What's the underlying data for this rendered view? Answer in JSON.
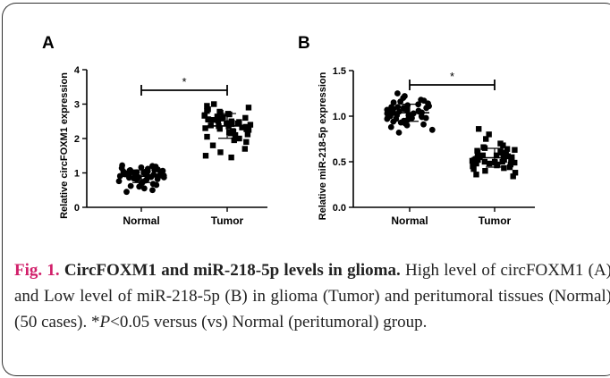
{
  "figure": {
    "panels": [
      {
        "letter": "A",
        "ylabel": "Relative circFOXM1 expression",
        "yticks": [
          "0",
          "1",
          "2",
          "3",
          "4"
        ],
        "categories": [
          "Normal",
          "Tumor"
        ],
        "significance": "*"
      },
      {
        "letter": "B",
        "ylabel": "Relative miR-218-5p expression",
        "yticks": [
          "0.0",
          "0.5",
          "1.0",
          "1.5"
        ],
        "categories": [
          "Normal",
          "Tumor"
        ],
        "significance": "*"
      }
    ]
  },
  "chart_data": [
    {
      "type": "scatter",
      "ylabel": "Relative circFOXM1 expression",
      "categories": [
        "Normal",
        "Tumor"
      ],
      "ylim": [
        0,
        4
      ],
      "series": [
        {
          "name": "Normal",
          "values": [
            0.45,
            0.5,
            0.55,
            0.6,
            0.62,
            0.65,
            0.68,
            0.7,
            0.72,
            0.74,
            0.76,
            0.78,
            0.8,
            0.81,
            0.82,
            0.84,
            0.85,
            0.86,
            0.87,
            0.88,
            0.89,
            0.9,
            0.91,
            0.92,
            0.93,
            0.94,
            0.95,
            0.96,
            0.97,
            0.98,
            0.99,
            1.0,
            1.01,
            1.02,
            1.03,
            1.04,
            1.05,
            1.06,
            1.07,
            1.08,
            1.09,
            1.1,
            1.12,
            1.14,
            1.16,
            1.18,
            1.2,
            1.22,
            0.88,
            0.92
          ]
        },
        {
          "name": "Tumor",
          "values": [
            1.45,
            1.5,
            1.6,
            1.7,
            1.8,
            1.9,
            1.95,
            2.0,
            2.05,
            2.1,
            2.12,
            2.15,
            2.18,
            2.2,
            2.22,
            2.25,
            2.27,
            2.3,
            2.32,
            2.34,
            2.36,
            2.38,
            2.4,
            2.42,
            2.44,
            2.46,
            2.48,
            2.5,
            2.52,
            2.54,
            2.56,
            2.58,
            2.6,
            2.62,
            2.64,
            2.66,
            2.68,
            2.7,
            2.72,
            2.75,
            2.78,
            2.8,
            2.85,
            2.9,
            2.95,
            3.0,
            2.35,
            2.45,
            2.28,
            2.55
          ]
        }
      ]
    },
    {
      "type": "scatter",
      "ylabel": "Relative miR-218-5p expression",
      "categories": [
        "Normal",
        "Tumor"
      ],
      "ylim": [
        0,
        1.5
      ],
      "series": [
        {
          "name": "Normal",
          "values": [
            0.82,
            0.85,
            0.88,
            0.9,
            0.91,
            0.92,
            0.93,
            0.94,
            0.95,
            0.96,
            0.97,
            0.97,
            0.98,
            0.98,
            0.99,
            0.99,
            1.0,
            1.0,
            1.01,
            1.01,
            1.02,
            1.02,
            1.03,
            1.03,
            1.04,
            1.04,
            1.05,
            1.05,
            1.06,
            1.06,
            1.07,
            1.07,
            1.08,
            1.08,
            1.09,
            1.09,
            1.1,
            1.1,
            1.11,
            1.12,
            1.13,
            1.14,
            1.15,
            1.16,
            1.17,
            1.18,
            1.2,
            1.22,
            1.25,
            1.0
          ]
        },
        {
          "name": "Tumor",
          "values": [
            0.34,
            0.36,
            0.38,
            0.4,
            0.42,
            0.43,
            0.44,
            0.45,
            0.46,
            0.47,
            0.47,
            0.48,
            0.48,
            0.49,
            0.49,
            0.5,
            0.5,
            0.5,
            0.51,
            0.51,
            0.52,
            0.52,
            0.52,
            0.53,
            0.53,
            0.54,
            0.54,
            0.55,
            0.55,
            0.56,
            0.56,
            0.57,
            0.57,
            0.58,
            0.58,
            0.59,
            0.6,
            0.6,
            0.61,
            0.62,
            0.63,
            0.64,
            0.65,
            0.66,
            0.68,
            0.7,
            0.75,
            0.8,
            0.86,
            0.52
          ]
        }
      ]
    }
  ],
  "caption": {
    "label": "Fig. 1.",
    "title": "CircFOXM1 and miR-218-5p levels in glioma.",
    "body_1": "High level of circFOXM1 (A) and Low level of miR-218-5p (B) in glioma (Tumor) and peritumoral tissues (Normal) (50 cases). *",
    "p_symbol": "P",
    "body_2": "<0.05 versus (vs) Normal (peritumoral) group."
  }
}
